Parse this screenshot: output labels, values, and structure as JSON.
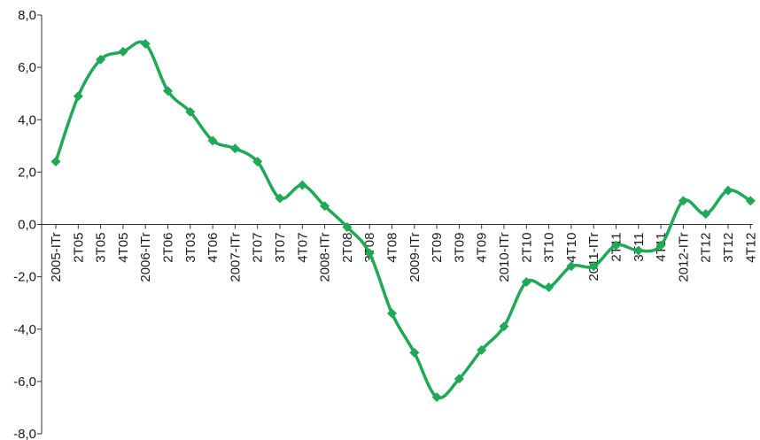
{
  "chart_data": {
    "type": "line",
    "title": "",
    "xlabel": "",
    "ylabel": "",
    "ylim": [
      -8,
      8
    ],
    "yticks": [
      "8,0",
      "6,0",
      "4,0",
      "2,0",
      "0,0",
      "-2,0",
      "-4,0",
      "-6,0",
      "-8,0"
    ],
    "categories": [
      "2005-ITr",
      "2T05",
      "3T05",
      "4T05",
      "2006-ITr",
      "2T06",
      "3T03",
      "4T06",
      "2007-ITr",
      "2T07",
      "3T07",
      "4T07",
      "2008-ITr",
      "2T08",
      "3T08",
      "4T08",
      "2009-ITr",
      "2T09",
      "3T09",
      "4T09",
      "2010-ITr",
      "2T10",
      "3T10",
      "4T10",
      "2011-ITr",
      "2T11",
      "3T11",
      "4T11",
      "2012-ITr",
      "2T12",
      "3T12",
      "4T12"
    ],
    "series": [
      {
        "values": [
          2.4,
          4.9,
          6.3,
          6.6,
          6.9,
          5.1,
          4.3,
          3.2,
          2.9,
          2.4,
          1.0,
          1.5,
          0.7,
          -0.1,
          -1.1,
          -3.4,
          -4.9,
          -6.6,
          -5.9,
          -4.8,
          -3.9,
          -2.2,
          -2.4,
          -1.6,
          -1.6,
          -0.8,
          -1.0,
          -0.8,
          0.9,
          0.4,
          1.3,
          0.9
        ],
        "color": "#1fa855"
      }
    ],
    "grid": false,
    "legend": "none",
    "marker": "diamond",
    "smooth": true
  }
}
